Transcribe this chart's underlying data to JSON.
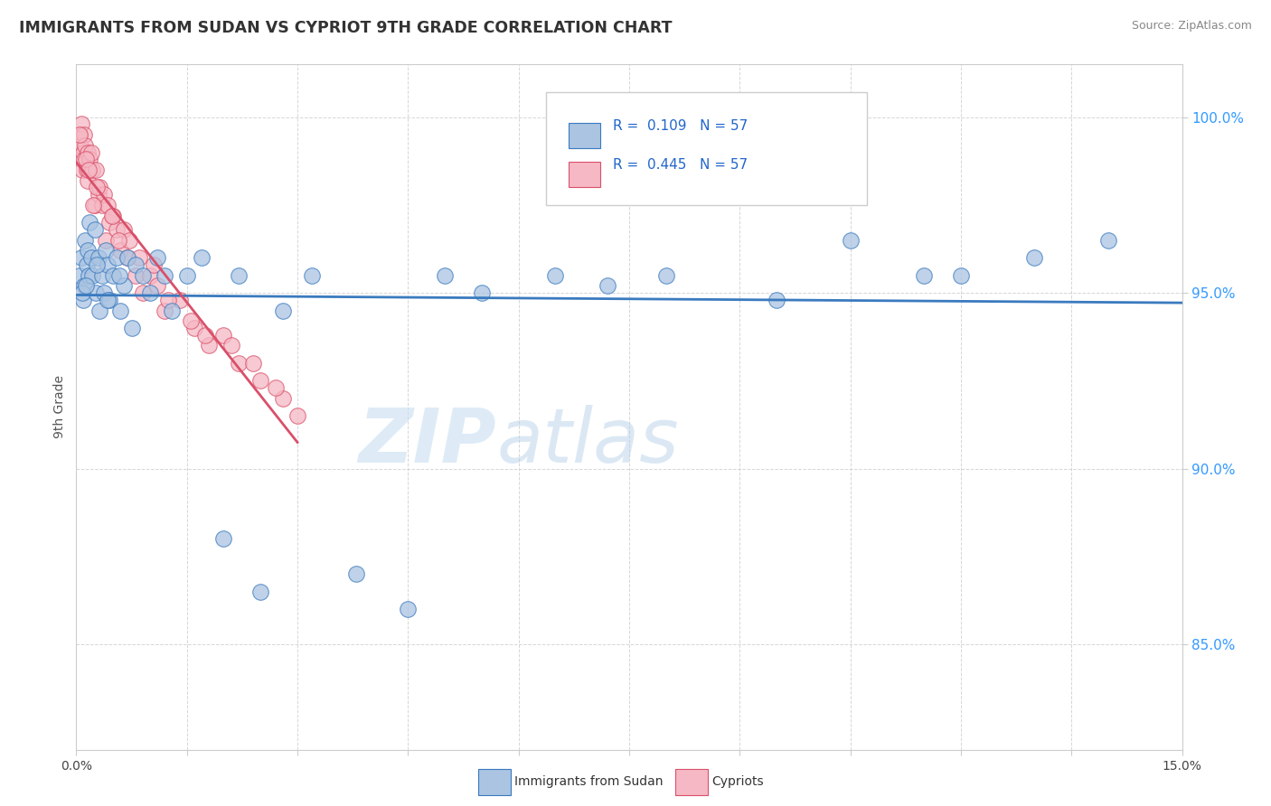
{
  "title": "IMMIGRANTS FROM SUDAN VS CYPRIOT 9TH GRADE CORRELATION CHART",
  "source": "Source: ZipAtlas.com",
  "ylabel": "9th Grade",
  "xmin": 0.0,
  "xmax": 15.0,
  "ymin": 82.0,
  "ymax": 101.5,
  "yticks": [
    85.0,
    90.0,
    95.0,
    100.0
  ],
  "ytick_labels": [
    "85.0%",
    "90.0%",
    "95.0%",
    "100.0%"
  ],
  "blue_color": "#aac4e2",
  "pink_color": "#f5b8c4",
  "blue_line_color": "#3a7abf",
  "pink_line_color": "#d9506a",
  "legend_label1": "Immigrants from Sudan",
  "legend_label2": "Cypriots",
  "watermark_zip": "ZIP",
  "watermark_atlas": "atlas",
  "background_color": "#ffffff",
  "title_color": "#333333",
  "title_fontsize": 12.5,
  "blue_scatter_x": [
    0.05,
    0.07,
    0.09,
    0.1,
    0.12,
    0.14,
    0.15,
    0.17,
    0.18,
    0.2,
    0.22,
    0.25,
    0.27,
    0.3,
    0.32,
    0.35,
    0.38,
    0.4,
    0.43,
    0.45,
    0.5,
    0.55,
    0.6,
    0.65,
    0.7,
    0.75,
    0.8,
    0.9,
    1.0,
    1.1,
    1.2,
    1.3,
    1.5,
    1.7,
    2.0,
    2.2,
    2.5,
    2.8,
    3.2,
    3.8,
    4.5,
    5.0,
    5.5,
    6.5,
    7.2,
    8.0,
    9.5,
    10.5,
    11.5,
    12.0,
    13.0,
    14.0,
    0.08,
    0.13,
    0.28,
    0.42,
    0.58
  ],
  "blue_scatter_y": [
    95.5,
    96.0,
    94.8,
    95.2,
    96.5,
    95.8,
    96.2,
    95.5,
    97.0,
    96.0,
    95.5,
    96.8,
    95.0,
    96.0,
    94.5,
    95.5,
    95.0,
    96.2,
    95.8,
    94.8,
    95.5,
    96.0,
    94.5,
    95.2,
    96.0,
    94.0,
    95.8,
    95.5,
    95.0,
    96.0,
    95.5,
    94.5,
    95.5,
    96.0,
    88.0,
    95.5,
    86.5,
    94.5,
    95.5,
    87.0,
    86.0,
    95.5,
    95.0,
    95.5,
    95.2,
    95.5,
    94.8,
    96.5,
    95.5,
    95.5,
    96.0,
    96.5,
    95.0,
    95.2,
    95.8,
    94.8,
    95.5
  ],
  "pink_scatter_x": [
    0.04,
    0.06,
    0.07,
    0.08,
    0.09,
    0.1,
    0.11,
    0.12,
    0.14,
    0.15,
    0.16,
    0.18,
    0.2,
    0.22,
    0.25,
    0.27,
    0.3,
    0.32,
    0.35,
    0.38,
    0.4,
    0.43,
    0.45,
    0.5,
    0.55,
    0.6,
    0.65,
    0.7,
    0.8,
    0.9,
    1.0,
    1.1,
    1.2,
    1.4,
    1.6,
    1.8,
    2.0,
    2.2,
    2.5,
    2.8,
    3.0,
    0.13,
    0.28,
    0.48,
    0.72,
    0.85,
    1.05,
    1.25,
    1.55,
    1.75,
    2.1,
    2.4,
    2.7,
    0.05,
    0.17,
    0.23,
    0.57
  ],
  "pink_scatter_y": [
    99.5,
    99.2,
    99.8,
    98.5,
    99.0,
    99.5,
    98.8,
    99.2,
    98.5,
    99.0,
    98.2,
    98.8,
    99.0,
    98.5,
    97.5,
    98.5,
    97.8,
    98.0,
    97.5,
    97.8,
    96.5,
    97.5,
    97.0,
    97.2,
    96.8,
    96.2,
    96.8,
    96.0,
    95.5,
    95.0,
    95.5,
    95.2,
    94.5,
    94.8,
    94.0,
    93.5,
    93.8,
    93.0,
    92.5,
    92.0,
    91.5,
    98.8,
    98.0,
    97.2,
    96.5,
    96.0,
    95.8,
    94.8,
    94.2,
    93.8,
    93.5,
    93.0,
    92.3,
    99.5,
    98.5,
    97.5,
    96.5
  ]
}
